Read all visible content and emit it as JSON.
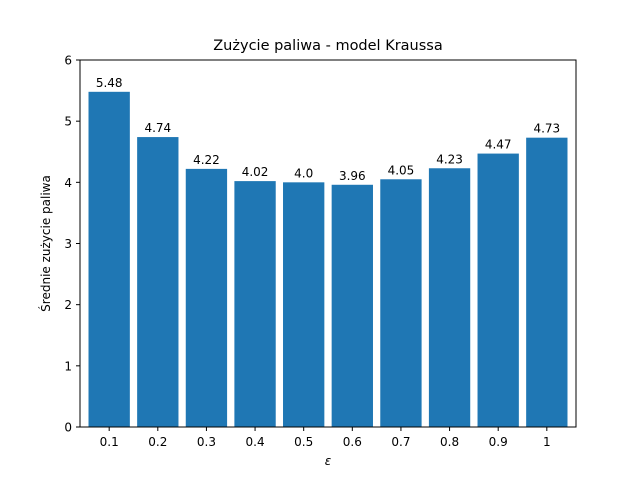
{
  "chart_data": {
    "type": "bar",
    "title": "Zużycie paliwa - model Kraussa",
    "xlabel": "ε",
    "ylabel": "Średnie zużycie paliwa",
    "categories": [
      "0.1",
      "0.2",
      "0.3",
      "0.4",
      "0.5",
      "0.6",
      "0.7",
      "0.8",
      "0.9",
      "1"
    ],
    "values": [
      5.48,
      4.74,
      4.22,
      4.02,
      4.0,
      3.96,
      4.05,
      4.23,
      4.47,
      4.73
    ],
    "data_labels": [
      "5.48",
      "4.74",
      "4.22",
      "4.02",
      "4.0",
      "3.96",
      "4.05",
      "4.23",
      "4.47",
      "4.73"
    ],
    "ylim": [
      0,
      6
    ],
    "yticks": [
      "0",
      "1",
      "2",
      "3",
      "4",
      "5",
      "6"
    ],
    "grid": false,
    "bar_color": "#1f77b4"
  }
}
